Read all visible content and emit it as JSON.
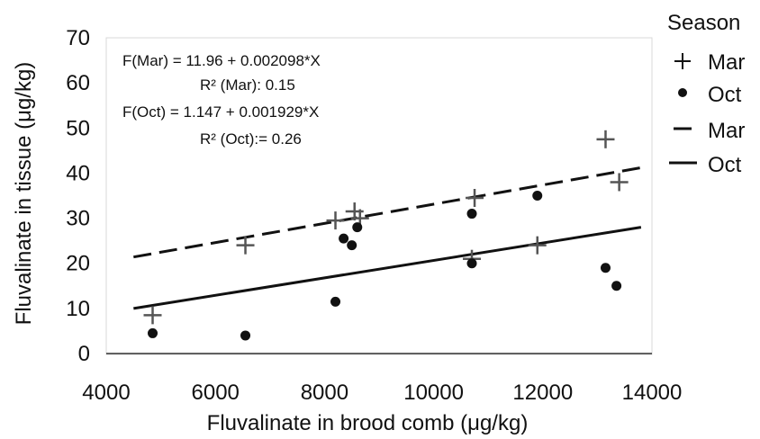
{
  "chart_data": {
    "type": "scatter",
    "xlabel": "Fluvalinate in brood comb (μg/kg)",
    "ylabel": "Fluvalinate in tissue (μg/kg)",
    "xlim": [
      4000,
      14000
    ],
    "ylim": [
      0,
      70
    ],
    "xticks": [
      "4000",
      "6000",
      "8000",
      "10000",
      "12000",
      "14000"
    ],
    "yticks": [
      "0",
      "10",
      "20",
      "30",
      "40",
      "50",
      "60",
      "70"
    ],
    "grid": false,
    "legend": {
      "title": "Season",
      "placement": "right",
      "entries": [
        {
          "label": "Mar",
          "marker": "plus"
        },
        {
          "label": "Oct",
          "marker": "dot"
        },
        {
          "label": "Mar",
          "line": "dashed"
        },
        {
          "label": "Oct",
          "line": "solid"
        }
      ]
    },
    "series": [
      {
        "name": "Mar",
        "marker": "plus",
        "points": [
          [
            4850,
            8.5
          ],
          [
            6550,
            24
          ],
          [
            8200,
            29.5
          ],
          [
            8550,
            31.5
          ],
          [
            8650,
            30
          ],
          [
            10750,
            34.5
          ],
          [
            10700,
            21
          ],
          [
            11900,
            24
          ],
          [
            13150,
            47.5
          ],
          [
            13400,
            38
          ]
        ]
      },
      {
        "name": "Oct",
        "marker": "dot",
        "points": [
          [
            4850,
            4.5
          ],
          [
            6550,
            4
          ],
          [
            8200,
            11.5
          ],
          [
            8350,
            25.5
          ],
          [
            8500,
            24
          ],
          [
            8600,
            28
          ],
          [
            10700,
            31
          ],
          [
            10700,
            20
          ],
          [
            11900,
            35
          ],
          [
            13150,
            19
          ],
          [
            13350,
            15
          ]
        ]
      }
    ],
    "fits": [
      {
        "name": "Mar",
        "style": "dashed",
        "x": [
          4500,
          13800
        ],
        "y": [
          21.4,
          41.2
        ]
      },
      {
        "name": "Oct",
        "style": "solid",
        "x": [
          4500,
          13800
        ],
        "y": [
          10,
          28
        ]
      }
    ],
    "annotations": {
      "mar_equation": "F(Mar) = 11.96 + 0.002098*X",
      "mar_r2": "R² (Mar): 0.15",
      "oct_equation": "F(Oct) = 1.147 + 0.001929*X",
      "oct_r2": "R² (Oct):= 0.26"
    }
  }
}
